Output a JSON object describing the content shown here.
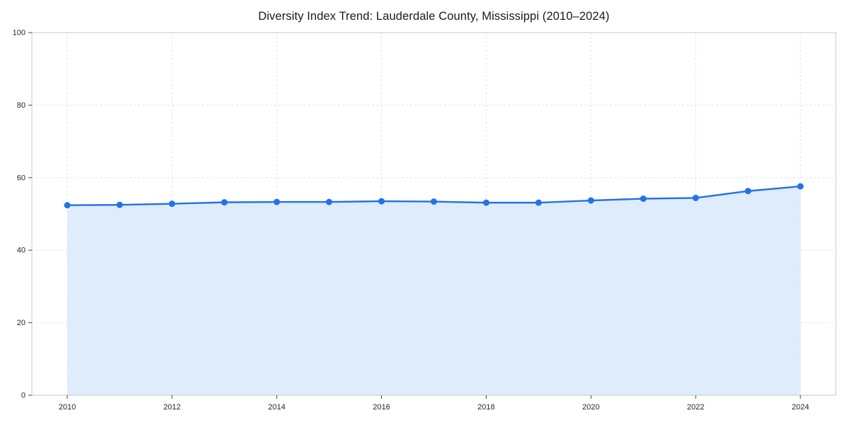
{
  "chart_data": {
    "type": "area",
    "title": "Diversity Index Trend: Lauderdale County, Mississippi (2010–2024)",
    "xlabel": "",
    "ylabel": "",
    "x": [
      2010,
      2011,
      2012,
      2013,
      2014,
      2015,
      2016,
      2017,
      2018,
      2019,
      2020,
      2021,
      2022,
      2023,
      2024
    ],
    "values": [
      52.4,
      52.5,
      52.8,
      53.2,
      53.3,
      53.3,
      53.5,
      53.4,
      53.1,
      53.1,
      53.7,
      54.2,
      54.4,
      56.3,
      57.6
    ],
    "ylim": [
      0,
      100
    ],
    "yticks": [
      0,
      20,
      40,
      60,
      80,
      100
    ],
    "xticks": [
      2010,
      2012,
      2014,
      2016,
      2018,
      2020,
      2022,
      2024
    ],
    "grid": true,
    "legend": null,
    "colors": {
      "line": "#2272e8",
      "marker": "#2272e8",
      "fill": "#dfecfc",
      "grid": "#e2e2e2",
      "spine": "#c9c9c9",
      "tick": "#444444",
      "label": "#262626"
    }
  }
}
